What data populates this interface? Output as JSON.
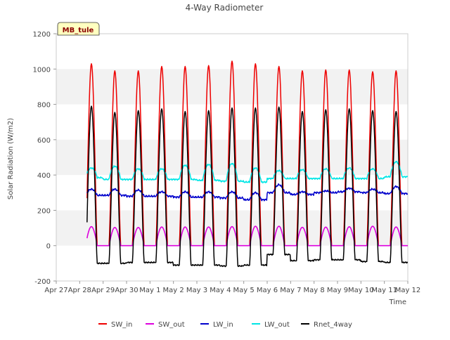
{
  "chart_data": {
    "type": "line",
    "title": "4-Way Radiometer",
    "xlabel": "Time",
    "ylabel": "Solar Radiation (W/m2)",
    "ylim": [
      -200,
      1200
    ],
    "yticks": [
      -200,
      0,
      200,
      400,
      600,
      800,
      1000,
      1200
    ],
    "xlim": [
      "2024-04-27",
      "2024-05-12"
    ],
    "xtick_labels": [
      "Apr 27",
      "Apr 28",
      "Apr 29",
      "Apr 30",
      "May 1",
      "May 2",
      "May 3",
      "May 4",
      "May 5",
      "May 6",
      "May 7",
      "May 8",
      "May 9",
      "May 10",
      "May 11",
      "May 12"
    ],
    "grid": "horizontal alternating bands",
    "legend_position": "bottom",
    "annotation": "MB_tule",
    "days": [
      "Apr 28",
      "Apr 29",
      "Apr 30",
      "May 1",
      "May 2",
      "May 3",
      "May 4",
      "May 5",
      "May 6",
      "May 7",
      "May 8",
      "May 9",
      "May 10",
      "May 11"
    ],
    "series": [
      {
        "name": "SW_in",
        "color": "#ee0000",
        "daily_peak": [
          1030,
          990,
          990,
          1015,
          1015,
          1020,
          1045,
          1030,
          1015,
          990,
          995,
          995,
          985,
          990
        ],
        "night_value": 0
      },
      {
        "name": "SW_out",
        "color": "#dd00dd",
        "daily_peak": [
          108,
          103,
          103,
          106,
          106,
          106,
          108,
          110,
          110,
          104,
          105,
          107,
          110,
          106
        ],
        "night_value": 0
      },
      {
        "name": "LW_in",
        "color": "#0000cc",
        "daily_peak": [
          320,
          320,
          315,
          305,
          305,
          305,
          305,
          300,
          345,
          305,
          310,
          325,
          320,
          335
        ],
        "night_value": [
          285,
          285,
          280,
          280,
          275,
          275,
          270,
          260,
          300,
          290,
          300,
          305,
          300,
          295
        ]
      },
      {
        "name": "LW_out",
        "color": "#00e5e5",
        "daily_peak": [
          440,
          450,
          435,
          435,
          455,
          460,
          465,
          440,
          425,
          430,
          435,
          440,
          435,
          475
        ],
        "night_value": [
          385,
          375,
          375,
          375,
          375,
          370,
          365,
          360,
          380,
          380,
          380,
          380,
          380,
          390
        ]
      },
      {
        "name": "Rnet_4way",
        "color": "#000000",
        "daily_peak": [
          790,
          755,
          765,
          775,
          760,
          765,
          780,
          780,
          785,
          760,
          770,
          775,
          765,
          760
        ],
        "night_value": [
          -100,
          -100,
          -95,
          -95,
          -110,
          -110,
          -115,
          -110,
          -50,
          -85,
          -80,
          -80,
          -90,
          -95
        ]
      }
    ]
  }
}
